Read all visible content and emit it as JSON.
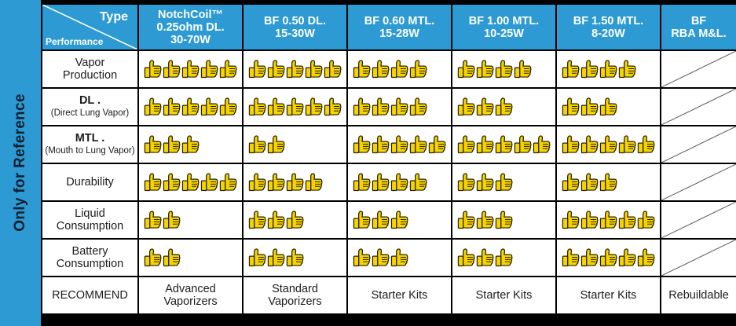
{
  "side_label": "Only for Reference",
  "corner": {
    "type": "Type",
    "performance": "Performance"
  },
  "columns": [
    {
      "line1": "NotchCoil™",
      "line2": "0.25ohm DL.",
      "line3": "30-70W"
    },
    {
      "line1": "BF 0.50 DL.",
      "line2": "15-30W"
    },
    {
      "line1": "BF 0.60 MTL.",
      "line2": "15-28W"
    },
    {
      "line1": "BF 1.00 MTL.",
      "line2": "10-25W"
    },
    {
      "line1": "BF 1.50 MTL.",
      "line2": "8-20W"
    },
    {
      "line1": "BF",
      "line2": "RBA M&L."
    }
  ],
  "rows": [
    {
      "label1": "Vapor",
      "label2": "Production",
      "ratings": [
        5,
        5,
        4,
        4,
        4,
        null
      ]
    },
    {
      "label1": "DL .",
      "label2": "(Direct Lung Vapor)",
      "ratings": [
        5,
        5,
        4,
        3,
        3,
        null
      ]
    },
    {
      "label1": "MTL .",
      "label2": "(Mouth to Lung Vapor)",
      "ratings": [
        3,
        2,
        5,
        5,
        5,
        null
      ]
    },
    {
      "label1": "Durability",
      "label2": "",
      "ratings": [
        5,
        4,
        4,
        3,
        3,
        null
      ]
    },
    {
      "label1": "Liquid",
      "label2": "Consumption",
      "ratings": [
        2,
        3,
        3,
        3,
        5,
        null
      ]
    },
    {
      "label1": "Battery",
      "label2": "Consumption",
      "ratings": [
        2,
        3,
        3,
        3,
        5,
        null
      ]
    }
  ],
  "recommend": {
    "label": "RECOMMEND",
    "values": [
      {
        "line1": "Advanced",
        "line2": "Vaporizers"
      },
      {
        "line1": "Standard",
        "line2": "Vaporizers"
      },
      {
        "line1": "Starter Kits",
        "line2": ""
      },
      {
        "line1": "Starter Kits",
        "line2": ""
      },
      {
        "line1": "Starter Kits",
        "line2": ""
      },
      {
        "line1": "Rebuildable",
        "line2": ""
      }
    ]
  },
  "colors": {
    "header_blue": "#2d9ad3",
    "thumb_yellow": "#f5d400",
    "background": "#000000"
  },
  "icon": "thumbs-up-icon"
}
